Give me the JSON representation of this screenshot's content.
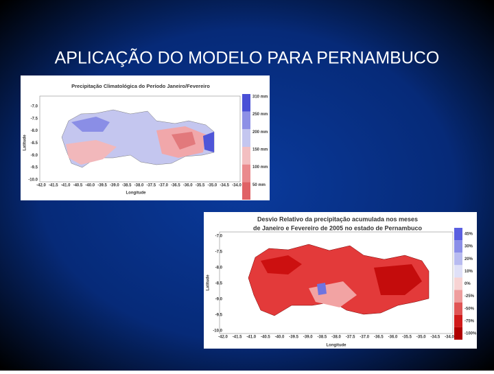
{
  "title": "APLICAÇÃO DO MODELO PARA PERNAMBUCO",
  "map1": {
    "title": "Precipitação Climatológica do Período Janeiro/Fevereiro",
    "x_label": "Longitude",
    "y_label": "Latitude",
    "x_ticks": [
      "-42.0",
      "-41.5",
      "-41.0",
      "-40.5",
      "-40.0",
      "-39.5",
      "-39.0",
      "-38.5",
      "-38.0",
      "-37.5",
      "-37.0",
      "-36.5",
      "-36.0",
      "-35.5",
      "-35.0",
      "-34.5",
      "-34.0"
    ],
    "y_ticks": [
      "-7.0",
      "-7.5",
      "-8.0",
      "-8.5",
      "-9.0",
      "-9.5",
      "-10.0"
    ],
    "legend": [
      "310 mm",
      "250 mm",
      "200 mm",
      "150 mm",
      "100 mm",
      "50 mm"
    ]
  },
  "map2": {
    "title_lines": [
      "Desvio Relativo da precipitação acumulada nos meses",
      "de Janeiro e Fevereiro de 2005 no estado de Pernambuco"
    ],
    "x_label": "Longitude",
    "y_label": "Latitude",
    "x_ticks": [
      "-42.0",
      "-41.5",
      "-41.0",
      "-40.5",
      "-40.0",
      "-39.5",
      "-39.0",
      "-38.5",
      "-38.0",
      "-37.5",
      "-37.0",
      "-36.5",
      "-36.0",
      "-35.5",
      "-35.0",
      "-34.5",
      "-34.0"
    ],
    "y_ticks": [
      "-7.0",
      "-7.5",
      "-8.0",
      "-8.5",
      "-9.0",
      "-9.5",
      "-10.0"
    ],
    "legend": [
      "45%",
      "30%",
      "20%",
      "10%",
      "0%",
      "-25%",
      "-50%",
      "-75%",
      "-100%"
    ]
  }
}
